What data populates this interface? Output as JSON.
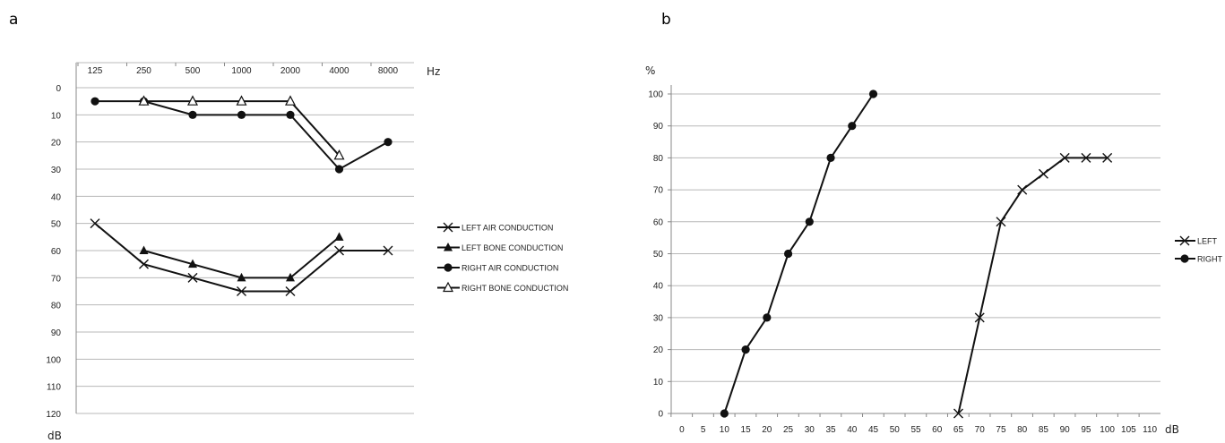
{
  "panels": {
    "a_label": "a",
    "b_label": "b"
  },
  "chart_data": [
    {
      "type": "line",
      "x_unit": "Hz",
      "y_unit": "dB",
      "categories": [
        "125",
        "250",
        "500",
        "1000",
        "2000",
        "4000",
        "8000"
      ],
      "y_ticks": [
        0,
        10,
        20,
        30,
        40,
        50,
        60,
        70,
        80,
        90,
        100,
        110,
        120
      ],
      "ylim": [
        0,
        120
      ],
      "y_inverted": true,
      "x_axis_position": "top",
      "grid": true,
      "legend_position": "right",
      "series": [
        {
          "name": "LEFT AIR CONDUCTION",
          "marker": "x",
          "values": [
            50,
            65,
            70,
            75,
            75,
            60,
            60
          ]
        },
        {
          "name": "LEFT BONE CONDUCTION",
          "marker": "filled-triangle",
          "values": [
            null,
            60,
            65,
            70,
            70,
            55,
            null
          ]
        },
        {
          "name": "RIGHT AIR CONDUCTION",
          "marker": "filled-circle",
          "values": [
            5,
            5,
            10,
            10,
            10,
            30,
            20
          ]
        },
        {
          "name": "RIGHT BONE CONDUCTION",
          "marker": "open-triangle",
          "values": [
            null,
            5,
            5,
            5,
            5,
            25,
            null
          ]
        }
      ]
    },
    {
      "type": "line",
      "x_unit": "dB",
      "y_unit": "%",
      "x_ticks": [
        0,
        5,
        10,
        15,
        20,
        25,
        30,
        35,
        40,
        45,
        50,
        55,
        60,
        65,
        70,
        75,
        80,
        85,
        90,
        95,
        100,
        105,
        110
      ],
      "y_ticks": [
        0,
        10,
        20,
        30,
        40,
        50,
        60,
        70,
        80,
        90,
        100
      ],
      "xlim": [
        -2.5,
        112.5
      ],
      "ylim": [
        0,
        100
      ],
      "grid": true,
      "legend_position": "right",
      "series": [
        {
          "name": "LEFT",
          "marker": "x",
          "points": [
            [
              65,
              0
            ],
            [
              70,
              30
            ],
            [
              75,
              60
            ],
            [
              80,
              70
            ],
            [
              85,
              75
            ],
            [
              90,
              80
            ],
            [
              95,
              80
            ],
            [
              100,
              80
            ]
          ]
        },
        {
          "name": "RIGHT",
          "marker": "filled-circle",
          "points": [
            [
              10,
              0
            ],
            [
              15,
              20
            ],
            [
              20,
              30
            ],
            [
              25,
              50
            ],
            [
              30,
              60
            ],
            [
              35,
              80
            ],
            [
              40,
              90
            ],
            [
              45,
              100
            ]
          ]
        }
      ]
    }
  ]
}
